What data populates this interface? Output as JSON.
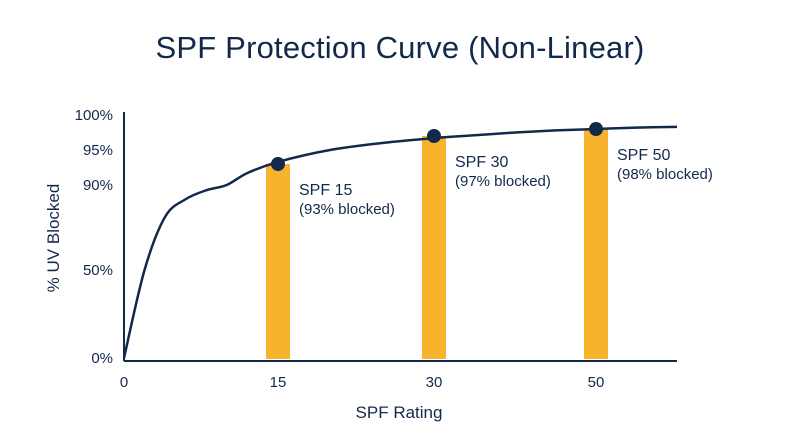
{
  "chart_data": {
    "type": "line",
    "title": "SPF Protection Curve (Non-Linear)",
    "xlabel": "SPF Rating",
    "ylabel": "% UV Blocked",
    "x_ticks": [
      "0",
      "15",
      "30",
      "50"
    ],
    "y_ticks": [
      "0%",
      "50%",
      "90%",
      "95%",
      "100%"
    ],
    "y_tick_values": [
      0,
      50,
      90,
      95,
      100
    ],
    "curve_x": [
      0,
      2,
      4,
      6,
      8,
      10,
      12,
      15,
      20,
      25,
      30,
      35,
      40,
      45,
      50,
      55,
      60
    ],
    "curve_y": [
      0,
      50,
      75,
      83.3,
      87.5,
      90,
      91.7,
      93.3,
      95,
      96,
      96.7,
      97.1,
      97.5,
      97.8,
      98,
      98.2,
      98.3
    ],
    "highlights": [
      {
        "x": 15,
        "y": 93,
        "label": "SPF 15",
        "sublabel": "(93% blocked)"
      },
      {
        "x": 30,
        "y": 97,
        "label": "SPF 30",
        "sublabel": "(97% blocked)"
      },
      {
        "x": 50,
        "y": 98,
        "label": "SPF 50",
        "sublabel": "(98% blocked)"
      }
    ],
    "colors": {
      "curve": "#13294b",
      "bar": "#f7b32b",
      "marker": "#13294b",
      "axis": "#13294b"
    },
    "grid": false,
    "legend": "none"
  }
}
